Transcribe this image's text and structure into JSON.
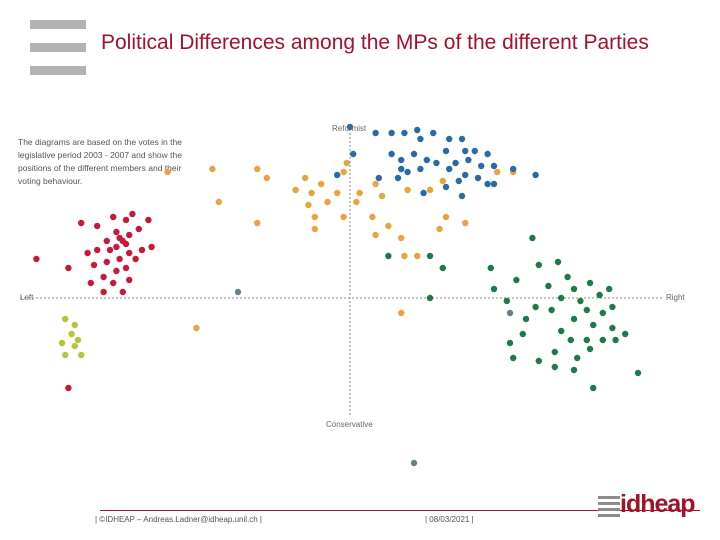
{
  "title": "Political Differences among the MPs of the different Parties",
  "note": "The diagrams are based on the votes in the legislative period 2003 - 2007 and show the positions of the different members and their voting behaviour.",
  "footer": {
    "left": "| ©IDHEAP – Andreas.Ladner@idheap.unil.ch |",
    "date": "| 08/03/2021 |",
    "logo_text": "idheap"
  },
  "chart_data": {
    "type": "scatter",
    "title": "Political Differences among the MPs of the different Parties",
    "axis_labels": {
      "top": "Reformist",
      "bottom": "Conservative",
      "left": "Left",
      "right": "Right"
    },
    "xlim": [
      -10,
      10
    ],
    "ylim": [
      -10,
      10
    ],
    "grid": false,
    "legend": "none",
    "series": [
      {
        "name": "red",
        "color": "#c8193b",
        "points": [
          [
            -8.4,
            2.5
          ],
          [
            -7.9,
            2.4
          ],
          [
            -7.4,
            2.7
          ],
          [
            -7.0,
            2.6
          ],
          [
            -6.8,
            2.8
          ],
          [
            -7.3,
            2.2
          ],
          [
            -6.9,
            2.1
          ],
          [
            -6.6,
            2.3
          ],
          [
            -7.1,
            1.9
          ],
          [
            -7.6,
            1.9
          ],
          [
            -7.9,
            1.6
          ],
          [
            -8.2,
            1.5
          ],
          [
            -8.0,
            1.1
          ],
          [
            -7.6,
            1.2
          ],
          [
            -7.2,
            1.3
          ],
          [
            -6.9,
            1.5
          ],
          [
            -6.5,
            1.6
          ],
          [
            -6.2,
            1.7
          ],
          [
            -7.3,
            0.9
          ],
          [
            -7.0,
            1.0
          ],
          [
            -7.7,
            0.7
          ],
          [
            -8.1,
            0.5
          ],
          [
            -7.4,
            0.5
          ],
          [
            -6.9,
            0.6
          ],
          [
            -7.1,
            0.2
          ],
          [
            -7.7,
            0.2
          ],
          [
            -7.5,
            1.6
          ],
          [
            -7.3,
            1.7
          ],
          [
            -7.0,
            1.8
          ],
          [
            -7.2,
            2.0
          ],
          [
            -6.7,
            1.3
          ],
          [
            -6.3,
            2.6
          ],
          [
            -9.8,
            1.3
          ],
          [
            -8.8,
            1.0
          ],
          [
            -8.8,
            -3.0
          ]
        ]
      },
      {
        "name": "yellow-green",
        "color": "#b6c43a",
        "points": [
          [
            -8.9,
            -0.7
          ],
          [
            -8.6,
            -0.9
          ],
          [
            -8.7,
            -1.2
          ],
          [
            -9.0,
            -1.5
          ],
          [
            -8.5,
            -1.4
          ],
          [
            -8.6,
            -1.6
          ],
          [
            -8.9,
            -1.9
          ],
          [
            -8.4,
            -1.9
          ]
        ]
      },
      {
        "name": "orange",
        "color": "#e9a33c",
        "points": [
          [
            -5.7,
            4.2
          ],
          [
            -4.3,
            4.3
          ],
          [
            -2.9,
            4.3
          ],
          [
            -2.6,
            4.0
          ],
          [
            -1.4,
            4.0
          ],
          [
            -0.9,
            3.8
          ],
          [
            -0.1,
            4.5
          ],
          [
            -0.2,
            4.2
          ],
          [
            0.8,
            3.8
          ],
          [
            1.0,
            3.4
          ],
          [
            -1.7,
            3.6
          ],
          [
            -1.2,
            3.5
          ],
          [
            -0.4,
            3.5
          ],
          [
            -0.7,
            3.2
          ],
          [
            0.3,
            3.5
          ],
          [
            0.2,
            3.2
          ],
          [
            -4.1,
            3.2
          ],
          [
            -1.3,
            3.1
          ],
          [
            -1.1,
            2.7
          ],
          [
            -2.9,
            2.5
          ],
          [
            -1.1,
            2.3
          ],
          [
            -0.2,
            2.7
          ],
          [
            0.7,
            2.7
          ],
          [
            0.8,
            2.1
          ],
          [
            1.2,
            2.4
          ],
          [
            1.6,
            2.0
          ],
          [
            1.7,
            1.4
          ],
          [
            2.1,
            1.4
          ],
          [
            3.0,
            2.7
          ],
          [
            3.6,
            2.5
          ],
          [
            2.8,
            2.3
          ],
          [
            4.6,
            4.2
          ],
          [
            5.1,
            4.2
          ],
          [
            2.9,
            3.9
          ],
          [
            2.5,
            3.6
          ],
          [
            1.8,
            3.6
          ],
          [
            -4.8,
            -1.0
          ],
          [
            1.6,
            -0.5
          ]
        ]
      },
      {
        "name": "blue",
        "color": "#2a6aa6",
        "points": [
          [
            0.0,
            5.7
          ],
          [
            0.8,
            5.5
          ],
          [
            1.3,
            5.5
          ],
          [
            1.7,
            5.5
          ],
          [
            2.1,
            5.6
          ],
          [
            2.2,
            5.3
          ],
          [
            2.6,
            5.5
          ],
          [
            3.1,
            5.3
          ],
          [
            3.5,
            5.3
          ],
          [
            3.0,
            4.9
          ],
          [
            3.6,
            4.9
          ],
          [
            3.9,
            4.9
          ],
          [
            4.3,
            4.8
          ],
          [
            1.3,
            4.8
          ],
          [
            1.6,
            4.6
          ],
          [
            2.0,
            4.8
          ],
          [
            2.4,
            4.6
          ],
          [
            2.7,
            4.5
          ],
          [
            3.3,
            4.5
          ],
          [
            3.7,
            4.6
          ],
          [
            4.1,
            4.4
          ],
          [
            4.5,
            4.4
          ],
          [
            5.1,
            4.3
          ],
          [
            5.8,
            4.1
          ],
          [
            3.1,
            4.3
          ],
          [
            3.6,
            4.1
          ],
          [
            4.0,
            4.0
          ],
          [
            4.3,
            3.8
          ],
          [
            1.8,
            4.2
          ],
          [
            2.2,
            4.3
          ],
          [
            1.5,
            4.0
          ],
          [
            1.6,
            4.3
          ],
          [
            2.3,
            3.5
          ],
          [
            3.0,
            3.7
          ],
          [
            3.5,
            3.4
          ],
          [
            4.5,
            3.8
          ],
          [
            0.1,
            4.8
          ],
          [
            0.9,
            4.0
          ],
          [
            -0.4,
            4.1
          ],
          [
            3.4,
            3.9
          ]
        ]
      },
      {
        "name": "green",
        "color": "#1f7a4a",
        "points": [
          [
            1.2,
            1.4
          ],
          [
            2.5,
            1.4
          ],
          [
            2.9,
            1.0
          ],
          [
            4.4,
            1.0
          ],
          [
            5.9,
            1.1
          ],
          [
            6.5,
            1.2
          ],
          [
            6.8,
            0.7
          ],
          [
            6.2,
            0.4
          ],
          [
            7.0,
            0.3
          ],
          [
            7.5,
            0.5
          ],
          [
            6.6,
            0.0
          ],
          [
            7.2,
            -0.1
          ],
          [
            7.8,
            0.1
          ],
          [
            8.1,
            0.3
          ],
          [
            7.4,
            -0.4
          ],
          [
            7.9,
            -0.5
          ],
          [
            8.2,
            -0.3
          ],
          [
            7.0,
            -0.7
          ],
          [
            7.6,
            -0.9
          ],
          [
            8.2,
            -1.0
          ],
          [
            6.6,
            -1.1
          ],
          [
            6.9,
            -1.4
          ],
          [
            7.4,
            -1.4
          ],
          [
            7.9,
            -1.4
          ],
          [
            8.3,
            -1.4
          ],
          [
            6.4,
            -1.8
          ],
          [
            7.1,
            -2.0
          ],
          [
            7.5,
            -1.7
          ],
          [
            5.2,
            0.6
          ],
          [
            4.9,
            -0.1
          ],
          [
            5.8,
            -0.3
          ],
          [
            6.3,
            -0.4
          ],
          [
            5.4,
            -1.2
          ],
          [
            5.5,
            -0.7
          ],
          [
            5.1,
            -2.0
          ],
          [
            5.0,
            -1.5
          ],
          [
            6.4,
            -2.3
          ],
          [
            5.9,
            -2.1
          ],
          [
            8.6,
            -1.2
          ],
          [
            9.0,
            -2.5
          ],
          [
            7.6,
            -3.0
          ],
          [
            5.7,
            2.0
          ],
          [
            7.0,
            -2.4
          ],
          [
            2.5,
            0.0
          ],
          [
            4.5,
            0.3
          ]
        ]
      },
      {
        "name": "grey",
        "color": "#6a7f8a",
        "points": [
          [
            -3.5,
            0.2
          ],
          [
            5.0,
            -0.5
          ],
          [
            2.0,
            -5.5
          ]
        ]
      }
    ]
  }
}
